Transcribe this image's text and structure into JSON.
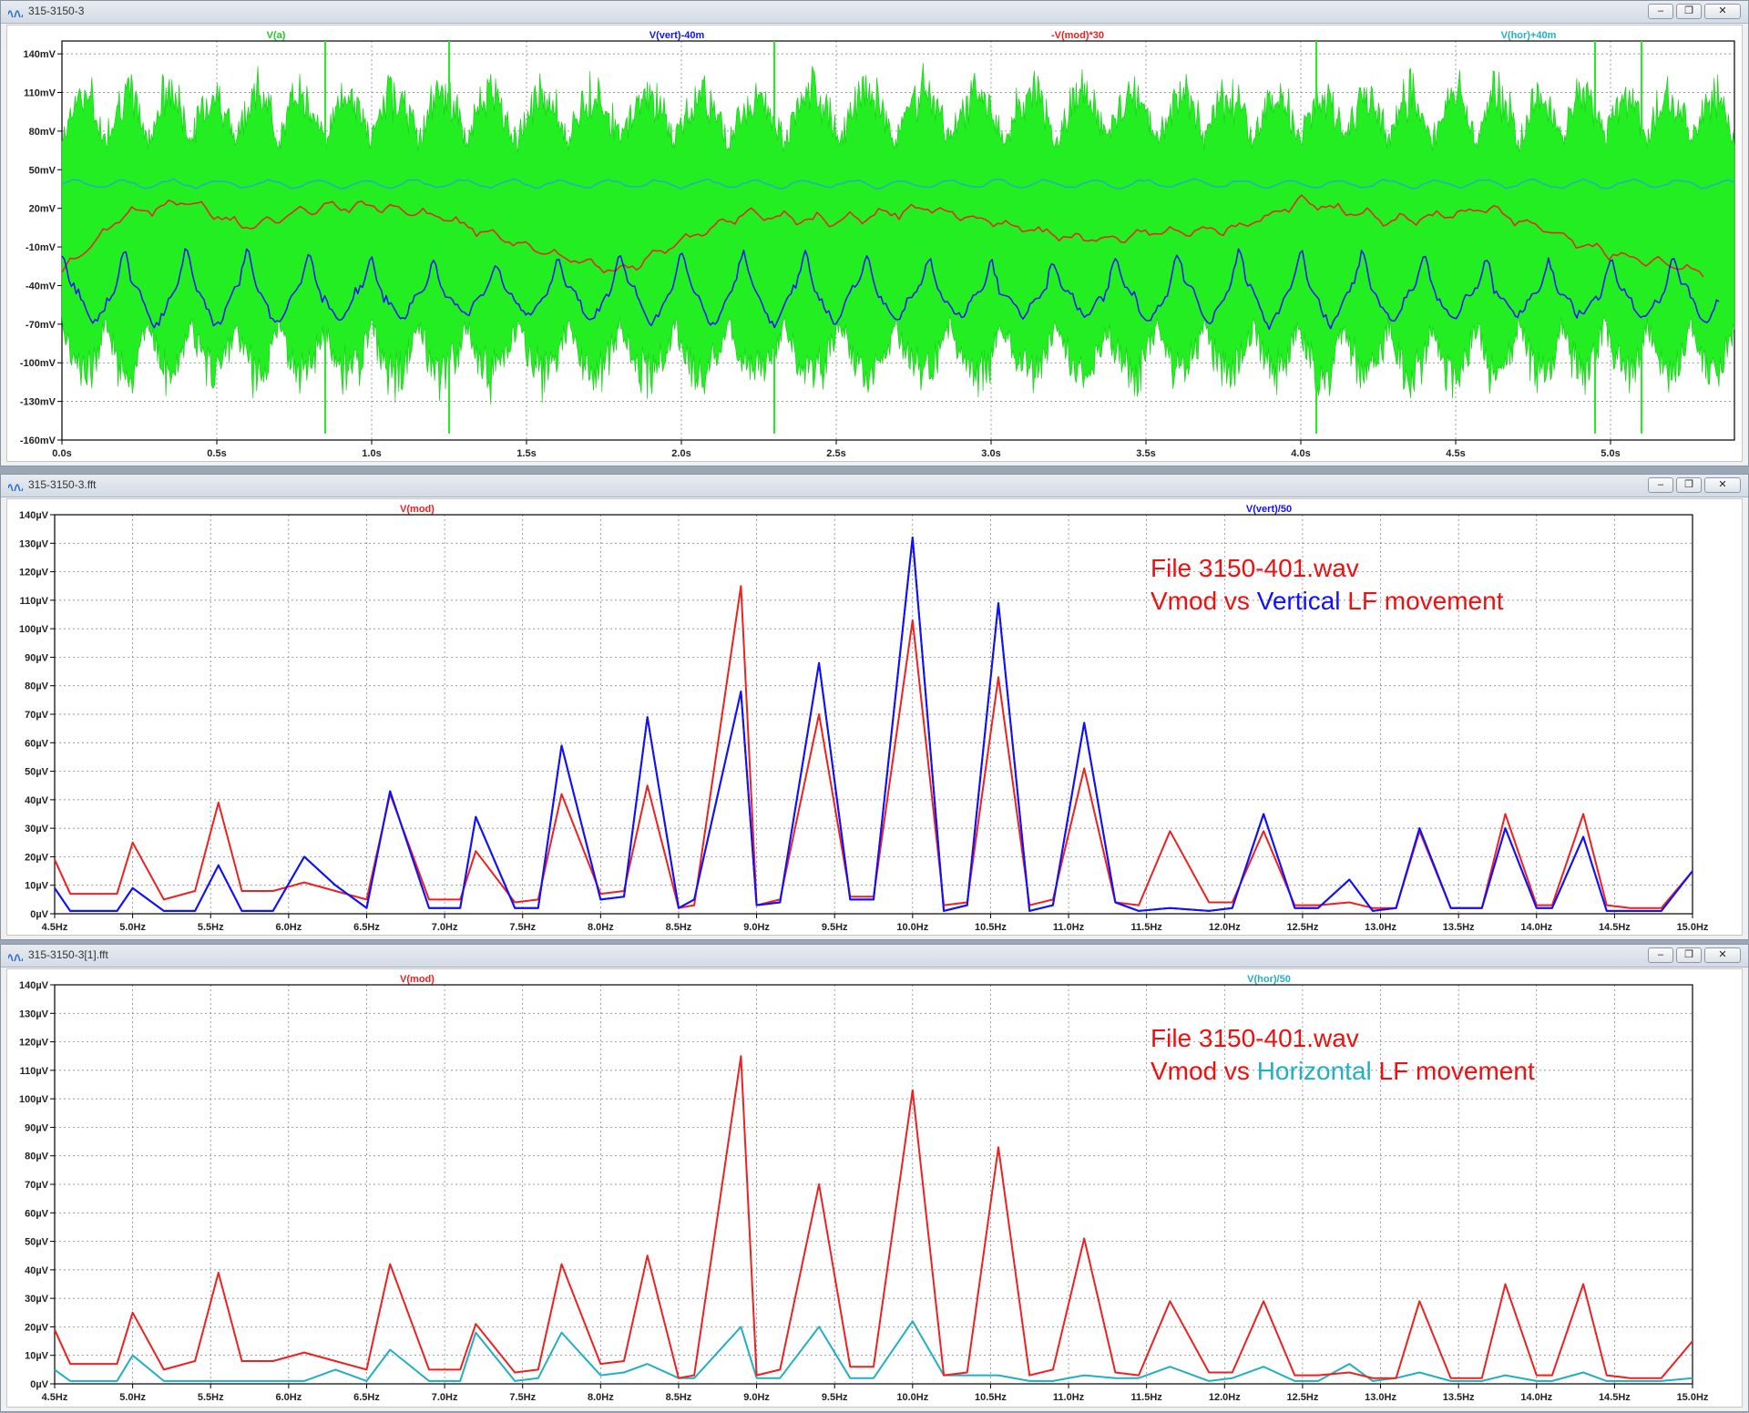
{
  "windows": [
    {
      "title": "315-3150-3",
      "traces": [
        {
          "name": "V(a)",
          "color": "#22cc22"
        },
        {
          "name": "V(vert)-40m",
          "color": "#1010ff"
        },
        {
          "name": "-V(mod)*30",
          "color": "#ee2020"
        },
        {
          "name": "V(hor)+40m",
          "color": "#20b0c0"
        }
      ],
      "ticks_y": [
        "140mV",
        "110mV",
        "80mV",
        "50mV",
        "20mV",
        "-10mV",
        "-40mV",
        "-70mV",
        "-100mV",
        "-130mV",
        "-160mV"
      ],
      "ticks_x": [
        "0.0s",
        "0.5s",
        "1.0s",
        "1.5s",
        "2.0s",
        "2.5s",
        "3.0s",
        "3.5s",
        "4.0s",
        "4.5s",
        "5.0s"
      ]
    },
    {
      "title": "315-3150-3.fft",
      "traces": [
        {
          "name": "V(mod)",
          "color": "#ee2020"
        },
        {
          "name": "V(vert)/50",
          "color": "#1010ff"
        }
      ],
      "ticks_y": [
        "140µV",
        "130µV",
        "120µV",
        "110µV",
        "100µV",
        "90µV",
        "80µV",
        "70µV",
        "60µV",
        "50µV",
        "40µV",
        "30µV",
        "20µV",
        "10µV",
        "0µV"
      ],
      "ticks_x": [
        "4.5Hz",
        "5.0Hz",
        "5.5Hz",
        "6.0Hz",
        "6.5Hz",
        "7.0Hz",
        "7.5Hz",
        "8.0Hz",
        "8.5Hz",
        "9.0Hz",
        "9.5Hz",
        "10.0Hz",
        "10.5Hz",
        "11.0Hz",
        "11.5Hz",
        "12.0Hz",
        "12.5Hz",
        "13.0Hz",
        "13.5Hz",
        "14.0Hz",
        "14.5Hz",
        "15.0Hz"
      ],
      "annotation": {
        "line1": "File 3150-401.wav",
        "line2_a": "Vmod vs ",
        "line2_b": "Vertical",
        "line2_c": " LF movement",
        "color_main": "#ee1010",
        "color_accent": "#1010ff"
      }
    },
    {
      "title": "315-3150-3[1].fft",
      "traces": [
        {
          "name": "V(mod)",
          "color": "#ee2020"
        },
        {
          "name": "V(hor)/50",
          "color": "#20b0c0"
        }
      ],
      "ticks_y": [
        "140µV",
        "130µV",
        "120µV",
        "110µV",
        "100µV",
        "90µV",
        "80µV",
        "70µV",
        "60µV",
        "50µV",
        "40µV",
        "30µV",
        "20µV",
        "10µV",
        "0µV"
      ],
      "ticks_x": [
        "4.5Hz",
        "5.0Hz",
        "5.5Hz",
        "6.0Hz",
        "6.5Hz",
        "7.0Hz",
        "7.5Hz",
        "8.0Hz",
        "8.5Hz",
        "9.0Hz",
        "9.5Hz",
        "10.0Hz",
        "10.5Hz",
        "11.0Hz",
        "11.5Hz",
        "12.0Hz",
        "12.5Hz",
        "13.0Hz",
        "13.5Hz",
        "14.0Hz",
        "14.5Hz",
        "15.0Hz"
      ],
      "annotation": {
        "line1": "File 3150-401.wav",
        "line2_a": "Vmod vs ",
        "line2_b": "Horizontal",
        "line2_c": " LF movement",
        "color_main": "#ee1010",
        "color_accent": "#20b0c0"
      }
    }
  ],
  "chart_data": [
    {
      "type": "line",
      "xlim": [
        0,
        5.4
      ],
      "ylim": [
        -160,
        150
      ],
      "xunit": "s",
      "yunit": "mV",
      "series": [
        {
          "name": "V(a)",
          "description_values_approx": "noise band roughly -120..140 mV"
        },
        {
          "name": "V(vert)-40m",
          "x": [
            0,
            0.1,
            0.2,
            0.3,
            0.5,
            0.7,
            1.0,
            1.5,
            1.8,
            2.0,
            2.5,
            3.0,
            3.5,
            4.0,
            4.5,
            5.0,
            5.3
          ],
          "values": [
            -45,
            -25,
            -50,
            -35,
            -55,
            -40,
            -45,
            -40,
            -50,
            -40,
            -45,
            -45,
            -35,
            -40,
            -45,
            -40,
            -40
          ]
        },
        {
          "name": "-V(mod)*30",
          "x": [
            0,
            0.2,
            0.4,
            0.6,
            0.8,
            1.0,
            1.2,
            1.5,
            1.8,
            2.0,
            2.2,
            2.5,
            2.8,
            3.0,
            3.3,
            3.5,
            3.8,
            4.0,
            4.3,
            4.6,
            5.0,
            5.3
          ],
          "values": [
            -30,
            15,
            25,
            5,
            20,
            22,
            15,
            -10,
            -30,
            -5,
            15,
            10,
            20,
            10,
            -5,
            0,
            5,
            25,
            10,
            20,
            -15,
            -30
          ]
        },
        {
          "name": "V(hor)+40m",
          "x": [
            0,
            1,
            2,
            3,
            4,
            5,
            5.4
          ],
          "values": [
            40,
            38,
            39,
            40,
            38,
            39,
            40
          ]
        }
      ]
    },
    {
      "type": "line",
      "xlim": [
        4.5,
        15.0
      ],
      "ylim": [
        0,
        140
      ],
      "xunit": "Hz",
      "yunit": "µV",
      "x": [
        4.5,
        4.6,
        4.9,
        5.0,
        5.2,
        5.4,
        5.55,
        5.7,
        5.9,
        6.1,
        6.3,
        6.5,
        6.65,
        6.9,
        7.1,
        7.2,
        7.45,
        7.6,
        7.75,
        8.0,
        8.15,
        8.3,
        8.5,
        8.6,
        8.9,
        9.0,
        9.15,
        9.4,
        9.6,
        9.75,
        10.0,
        10.2,
        10.35,
        10.55,
        10.75,
        10.9,
        11.1,
        11.3,
        11.45,
        11.65,
        11.9,
        12.05,
        12.25,
        12.45,
        12.6,
        12.8,
        12.95,
        13.1,
        13.25,
        13.45,
        13.65,
        13.8,
        14.0,
        14.1,
        14.3,
        14.45,
        14.6,
        14.8,
        15.0
      ],
      "series": [
        {
          "name": "V(mod)",
          "values": [
            19,
            7,
            7,
            25,
            5,
            8,
            39,
            8,
            8,
            11,
            8,
            5,
            42,
            5,
            5,
            22,
            4,
            5,
            42,
            7,
            8,
            45,
            2,
            3,
            115,
            3,
            5,
            70,
            6,
            6,
            103,
            3,
            4,
            83,
            3,
            5,
            51,
            4,
            3,
            29,
            4,
            4,
            29,
            3,
            3,
            4,
            2,
            2,
            29,
            2,
            2,
            35,
            3,
            3,
            35,
            3,
            2,
            2,
            15
          ]
        },
        {
          "name": "V(vert)/50",
          "values": [
            9,
            1,
            1,
            9,
            1,
            1,
            17,
            1,
            1,
            20,
            10,
            2,
            43,
            2,
            2,
            34,
            2,
            2,
            59,
            5,
            6,
            69,
            2,
            5,
            78,
            3,
            4,
            88,
            5,
            5,
            132,
            1,
            3,
            109,
            1,
            3,
            67,
            4,
            1,
            2,
            1,
            2,
            35,
            2,
            2,
            12,
            1,
            2,
            30,
            2,
            2,
            30,
            2,
            2,
            27,
            1,
            1,
            1,
            15
          ]
        }
      ]
    },
    {
      "type": "line",
      "xlim": [
        4.5,
        15.0
      ],
      "ylim": [
        0,
        140
      ],
      "xunit": "Hz",
      "yunit": "µV",
      "x": [
        4.5,
        4.6,
        4.9,
        5.0,
        5.2,
        5.4,
        5.55,
        5.7,
        5.9,
        6.1,
        6.3,
        6.5,
        6.65,
        6.9,
        7.1,
        7.2,
        7.45,
        7.6,
        7.75,
        8.0,
        8.15,
        8.3,
        8.5,
        8.6,
        8.9,
        9.0,
        9.15,
        9.4,
        9.6,
        9.75,
        10.0,
        10.2,
        10.35,
        10.55,
        10.75,
        10.9,
        11.1,
        11.3,
        11.45,
        11.65,
        11.9,
        12.05,
        12.25,
        12.45,
        12.6,
        12.8,
        12.95,
        13.1,
        13.25,
        13.45,
        13.65,
        13.8,
        14.0,
        14.1,
        14.3,
        14.45,
        14.6,
        14.8,
        15.0
      ],
      "series": [
        {
          "name": "V(mod)",
          "values": [
            19,
            7,
            7,
            25,
            5,
            8,
            39,
            8,
            8,
            11,
            8,
            5,
            42,
            5,
            5,
            21,
            4,
            5,
            42,
            7,
            8,
            45,
            2,
            3,
            115,
            3,
            5,
            70,
            6,
            6,
            103,
            3,
            4,
            83,
            3,
            5,
            51,
            4,
            3,
            29,
            4,
            4,
            29,
            3,
            3,
            4,
            2,
            2,
            29,
            2,
            2,
            35,
            3,
            3,
            35,
            3,
            2,
            2,
            15
          ]
        },
        {
          "name": "V(hor)/50",
          "values": [
            5,
            1,
            1,
            10,
            1,
            1,
            1,
            1,
            1,
            1,
            5,
            1,
            12,
            1,
            1,
            18,
            1,
            2,
            18,
            3,
            4,
            7,
            2,
            2,
            20,
            2,
            2,
            20,
            2,
            2,
            22,
            3,
            3,
            3,
            1,
            1,
            3,
            2,
            2,
            6,
            1,
            2,
            6,
            1,
            1,
            7,
            1,
            2,
            4,
            1,
            1,
            3,
            1,
            1,
            4,
            1,
            1,
            1,
            2
          ]
        }
      ]
    }
  ]
}
